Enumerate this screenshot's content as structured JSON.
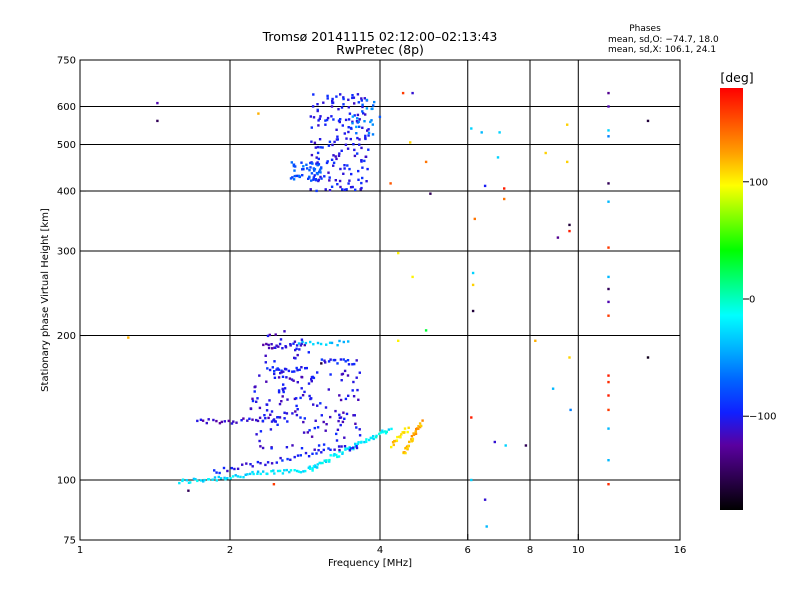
{
  "header": {
    "title": "Tromsø 20141115 02:12:00–02:13:43",
    "subtitle": "RwPretec (8p)"
  },
  "phases_box": {
    "heading": "Phases",
    "line_o": "mean, sd,O: −74.7, 18.0",
    "line_x": "mean, sd,X: 106.1, 24.1"
  },
  "colors": {
    "grid": "#000000",
    "colormap": [
      "#000000",
      "#2d0050",
      "#5a00a0",
      "#1020ff",
      "#0064ff",
      "#00b4ff",
      "#00ffff",
      "#00ff80",
      "#00ff00",
      "#80ff00",
      "#ffff00",
      "#ffa000",
      "#ff5000",
      "#ff0000"
    ]
  },
  "colorbar": {
    "label": "[deg]",
    "min": -180,
    "max": 180,
    "ticks": [
      {
        "value": 100,
        "label": "100"
      },
      {
        "value": 0,
        "label": "0"
      },
      {
        "value": -100,
        "label": "−100"
      }
    ]
  },
  "chart_data": {
    "type": "scatter",
    "title": "Tromsø 20141115 02:12:00–02:13:43",
    "subtitle": "RwPretec (8p)",
    "xlabel": "Frequency [MHz]",
    "ylabel": "Stationary phase Virtual Height [km]",
    "x_scale": "log",
    "y_scale": "log",
    "xlim": [
      1,
      16
    ],
    "ylim": [
      75,
      750
    ],
    "grid": true,
    "x_tick_labels": [
      "1",
      "2",
      "4",
      "6",
      "8",
      "10",
      "16"
    ],
    "y_tick_labels": [
      "75",
      "100",
      "200",
      "300",
      "400",
      "500",
      "600",
      "750"
    ],
    "x_ticks": [
      1,
      2,
      4,
      6,
      8,
      10,
      16
    ],
    "y_ticks": [
      75,
      100,
      200,
      300,
      400,
      500,
      600,
      750
    ],
    "x_gridlines": [
      2,
      4,
      6,
      8,
      10
    ],
    "y_gridlines": [
      100,
      200,
      300,
      400,
      500,
      600
    ],
    "series": [
      {
        "traces": [
          {
            "x0": 1.58,
            "x1": 3.0,
            "y0": 99,
            "y1": 106,
            "phase": -25,
            "n": 60
          },
          {
            "x0": 2.9,
            "x1": 4.2,
            "y0": 106,
            "y1": 128,
            "phase": -20,
            "n": 55
          },
          {
            "x0": 1.85,
            "x1": 3.6,
            "y0": 104,
            "y1": 118,
            "phase": -100,
            "n": 40
          },
          {
            "x0": 1.72,
            "x1": 2.6,
            "y0": 132,
            "y1": 134,
            "phase": -110,
            "n": 30
          },
          {
            "x0": 2.38,
            "x1": 2.82,
            "y0": 190,
            "y1": 190,
            "phase": -110,
            "n": 18
          },
          {
            "x0": 2.38,
            "x1": 2.82,
            "y0": 170,
            "y1": 170,
            "phase": -100,
            "n": 18
          },
          {
            "x0": 3.05,
            "x1": 3.6,
            "y0": 178,
            "y1": 176,
            "phase": -100,
            "n": 16
          },
          {
            "x0": 2.75,
            "x1": 3.45,
            "y0": 193,
            "y1": 193,
            "phase": -30,
            "n": 14
          },
          {
            "x0": 4.45,
            "x1": 4.85,
            "y0": 113,
            "y1": 132,
            "phase": 120,
            "n": 30
          },
          {
            "x0": 4.22,
            "x1": 4.55,
            "y0": 118,
            "y1": 128,
            "phase": 110,
            "n": 18
          }
        ],
        "clusters": [
          {
            "x0": 2.2,
            "x1": 3.7,
            "y0": 115,
            "y1": 170,
            "phase": -105,
            "n": 130
          },
          {
            "x0": 2.3,
            "x1": 2.9,
            "y0": 138,
            "y1": 205,
            "phase": -110,
            "n": 40
          },
          {
            "x0": 2.9,
            "x1": 3.8,
            "y0": 400,
            "y1": 640,
            "phase": -100,
            "n": 170
          },
          {
            "x0": 2.65,
            "x1": 3.1,
            "y0": 420,
            "y1": 460,
            "phase": -75,
            "n": 45
          },
          {
            "x0": 3.5,
            "x1": 4.0,
            "y0": 520,
            "y1": 620,
            "phase": -60,
            "n": 22
          }
        ],
        "points": [
          {
            "x": 1.43,
            "y": 610,
            "phase": -120
          },
          {
            "x": 1.43,
            "y": 560,
            "phase": -150
          },
          {
            "x": 2.28,
            "y": 580,
            "phase": 120
          },
          {
            "x": 1.25,
            "y": 198,
            "phase": 120
          },
          {
            "x": 4.45,
            "y": 640,
            "phase": 160
          },
          {
            "x": 4.65,
            "y": 640,
            "phase": -110
          },
          {
            "x": 4.6,
            "y": 505,
            "phase": 110
          },
          {
            "x": 4.95,
            "y": 460,
            "phase": 140
          },
          {
            "x": 4.2,
            "y": 415,
            "phase": 150
          },
          {
            "x": 5.05,
            "y": 395,
            "phase": -150
          },
          {
            "x": 4.35,
            "y": 297,
            "phase": 100
          },
          {
            "x": 4.65,
            "y": 265,
            "phase": 100
          },
          {
            "x": 4.95,
            "y": 205,
            "phase": 30
          },
          {
            "x": 4.35,
            "y": 195,
            "phase": 100
          },
          {
            "x": 6.1,
            "y": 540,
            "phase": -30
          },
          {
            "x": 6.4,
            "y": 530,
            "phase": -40
          },
          {
            "x": 6.95,
            "y": 530,
            "phase": -30
          },
          {
            "x": 6.9,
            "y": 470,
            "phase": -30
          },
          {
            "x": 6.2,
            "y": 350,
            "phase": 140
          },
          {
            "x": 6.5,
            "y": 410,
            "phase": -100
          },
          {
            "x": 7.1,
            "y": 405,
            "phase": 170
          },
          {
            "x": 7.1,
            "y": 385,
            "phase": 140
          },
          {
            "x": 6.15,
            "y": 270,
            "phase": -30
          },
          {
            "x": 6.15,
            "y": 255,
            "phase": 110
          },
          {
            "x": 6.15,
            "y": 225,
            "phase": -160
          },
          {
            "x": 6.1,
            "y": 135,
            "phase": 170
          },
          {
            "x": 6.8,
            "y": 120,
            "phase": -110
          },
          {
            "x": 7.15,
            "y": 118,
            "phase": -30
          },
          {
            "x": 7.85,
            "y": 118,
            "phase": -150
          },
          {
            "x": 6.1,
            "y": 100,
            "phase": -30
          },
          {
            "x": 6.5,
            "y": 91,
            "phase": -110
          },
          {
            "x": 6.55,
            "y": 80,
            "phase": -40
          },
          {
            "x": 8.2,
            "y": 195,
            "phase": 120
          },
          {
            "x": 8.6,
            "y": 480,
            "phase": 110
          },
          {
            "x": 9.1,
            "y": 320,
            "phase": -130
          },
          {
            "x": 9.6,
            "y": 340,
            "phase": -160
          },
          {
            "x": 9.6,
            "y": 330,
            "phase": 170
          },
          {
            "x": 9.5,
            "y": 550,
            "phase": 110
          },
          {
            "x": 9.5,
            "y": 460,
            "phase": 110
          },
          {
            "x": 9.6,
            "y": 180,
            "phase": 110
          },
          {
            "x": 8.9,
            "y": 155,
            "phase": -40
          },
          {
            "x": 9.65,
            "y": 140,
            "phase": -60
          },
          {
            "x": 11.5,
            "y": 640,
            "phase": -130
          },
          {
            "x": 11.5,
            "y": 600,
            "phase": -120
          },
          {
            "x": 11.5,
            "y": 535,
            "phase": -30
          },
          {
            "x": 11.5,
            "y": 520,
            "phase": -60
          },
          {
            "x": 11.5,
            "y": 415,
            "phase": -150
          },
          {
            "x": 11.5,
            "y": 380,
            "phase": -40
          },
          {
            "x": 11.5,
            "y": 305,
            "phase": 160
          },
          {
            "x": 11.5,
            "y": 265,
            "phase": -40
          },
          {
            "x": 11.5,
            "y": 250,
            "phase": -150
          },
          {
            "x": 11.5,
            "y": 235,
            "phase": -120
          },
          {
            "x": 11.5,
            "y": 220,
            "phase": 160
          },
          {
            "x": 11.5,
            "y": 165,
            "phase": 170
          },
          {
            "x": 11.5,
            "y": 160,
            "phase": 165
          },
          {
            "x": 11.5,
            "y": 150,
            "phase": 170
          },
          {
            "x": 11.5,
            "y": 140,
            "phase": 160
          },
          {
            "x": 11.5,
            "y": 128,
            "phase": -40
          },
          {
            "x": 11.5,
            "y": 110,
            "phase": -40
          },
          {
            "x": 11.5,
            "y": 98,
            "phase": 165
          },
          {
            "x": 13.8,
            "y": 560,
            "phase": -160
          },
          {
            "x": 13.8,
            "y": 180,
            "phase": -170
          },
          {
            "x": 1.65,
            "y": 95,
            "phase": -150
          },
          {
            "x": 2.45,
            "y": 98,
            "phase": 160
          },
          {
            "x": 3.05,
            "y": 175,
            "phase": -160
          }
        ]
      }
    ]
  }
}
